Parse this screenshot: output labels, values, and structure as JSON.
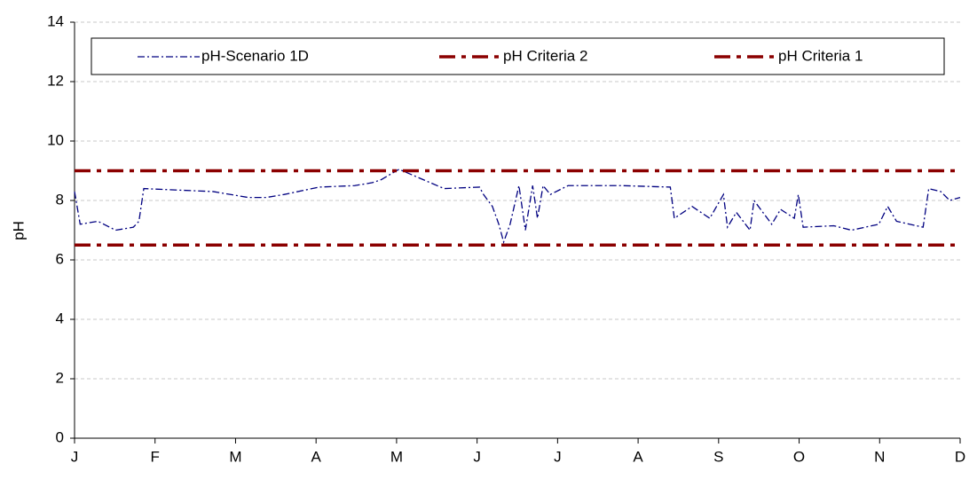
{
  "chart_data": {
    "type": "line",
    "ylabel": "pH",
    "xlim": [
      0,
      11
    ],
    "xticks": [
      {
        "value": 0,
        "label": "J"
      },
      {
        "value": 1,
        "label": "F"
      },
      {
        "value": 2,
        "label": "M"
      },
      {
        "value": 3,
        "label": "A"
      },
      {
        "value": 4,
        "label": "M"
      },
      {
        "value": 5,
        "label": "J"
      },
      {
        "value": 6,
        "label": "J"
      },
      {
        "value": 7,
        "label": "A"
      },
      {
        "value": 8,
        "label": "S"
      },
      {
        "value": 9,
        "label": "O"
      },
      {
        "value": 10,
        "label": "N"
      },
      {
        "value": 11,
        "label": "D"
      }
    ],
    "ylim": [
      0,
      14
    ],
    "yticks": [
      0,
      2,
      4,
      6,
      8,
      10,
      12,
      14
    ],
    "grid": true,
    "legend": "top",
    "series": [
      {
        "name": "pH-Scenario 1D",
        "color": "#000080",
        "x": [
          0,
          0.07,
          0.29,
          0.51,
          0.73,
          0.8,
          0.86,
          1.28,
          1.72,
          2.16,
          2.38,
          2.6,
          3.04,
          3.48,
          3.7,
          3.81,
          4.03,
          4.59,
          5.03,
          5.08,
          5.19,
          5.27,
          5.33,
          5.41,
          5.52,
          5.6,
          5.69,
          5.75,
          5.82,
          5.91,
          6.13,
          6.79,
          7.4,
          7.45,
          7.67,
          7.89,
          8.06,
          8.11,
          8.22,
          8.39,
          8.44,
          8.66,
          8.77,
          8.94,
          8.99,
          9.05,
          9.43,
          9.65,
          9.99,
          10.1,
          10.21,
          10.54,
          10.61,
          10.76,
          10.87,
          11
        ],
        "values": [
          8.3,
          7.2,
          7.3,
          7.0,
          7.1,
          7.3,
          8.4,
          8.35,
          8.3,
          8.1,
          8.1,
          8.2,
          8.45,
          8.5,
          8.6,
          8.7,
          9.05,
          8.4,
          8.45,
          8.2,
          7.8,
          7.2,
          6.6,
          7.2,
          8.5,
          7.0,
          8.5,
          7.4,
          8.5,
          8.2,
          8.5,
          8.5,
          8.45,
          7.4,
          7.8,
          7.4,
          8.2,
          7.1,
          7.6,
          7.0,
          8.0,
          7.2,
          7.7,
          7.4,
          8.2,
          7.1,
          7.15,
          7.0,
          7.2,
          7.8,
          7.3,
          7.1,
          8.4,
          8.3,
          8.0,
          8.1
        ]
      },
      {
        "name": "pH Criteria 2",
        "color": "#8b0000",
        "x": [
          0,
          11
        ],
        "values": [
          6.5,
          6.5
        ]
      },
      {
        "name": "pH Criteria 1",
        "color": "#8b0000",
        "x": [
          0,
          11
        ],
        "values": [
          9,
          9
        ]
      }
    ]
  }
}
